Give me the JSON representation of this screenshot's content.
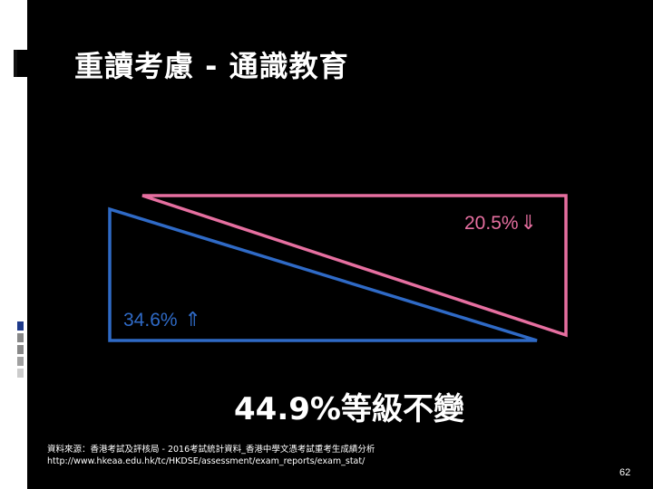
{
  "slide": {
    "title": "重讀考慮 - 通識教育",
    "page_number": "62"
  },
  "colors": {
    "background": "#000000",
    "text": "#ffffff",
    "pink": "#e66fa0",
    "blue": "#2f6ac6",
    "strip_squares": [
      "#1e3a8a",
      "#888888",
      "#888888",
      "#a0a0a0",
      "#cccccc"
    ]
  },
  "diagram": {
    "pink_label": "20.5%",
    "pink_arrow": "⇓",
    "blue_label": "34.6% ",
    "blue_arrow": "⇑"
  },
  "headline": "44.9%等級不變",
  "source": {
    "line1": "資料來源：香港考試及評核局 - 2016考試統計資料_香港中學文憑考試重考生成績分析",
    "line2": "http://www.hkeaa.edu.hk/tc/HKDSE/assessment/exam_reports/exam_stat/"
  },
  "icons": {
    "title_marker": "slide-title-marker-icon",
    "down_arrow": "double-down-arrow-icon",
    "up_arrow": "double-up-arrow-icon"
  }
}
